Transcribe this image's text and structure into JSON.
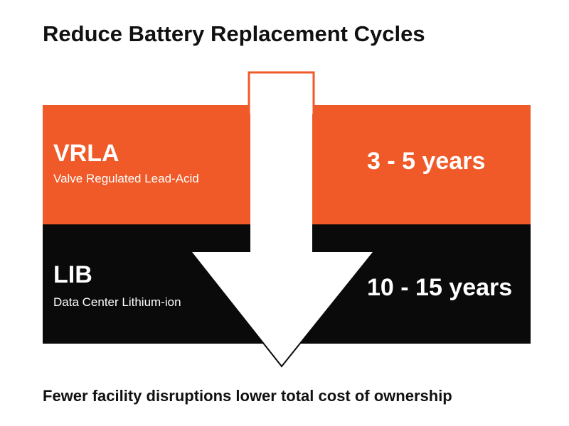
{
  "title": "Reduce Battery Replacement Cycles",
  "rows": [
    {
      "name": "VRLA",
      "description": "Valve Regulated Lead-Acid",
      "lifespan": "3 - 5 years",
      "color": "#f05a28"
    },
    {
      "name": "LIB",
      "description": "Data Center Lithium-ion",
      "lifespan": "10 - 15 years",
      "color": "#0a0a0a"
    }
  ],
  "arrow": {
    "direction": "down",
    "fill": "#ffffff",
    "outline_color": "#f05a28"
  },
  "footer": "Fewer facility disruptions lower total cost of ownership"
}
